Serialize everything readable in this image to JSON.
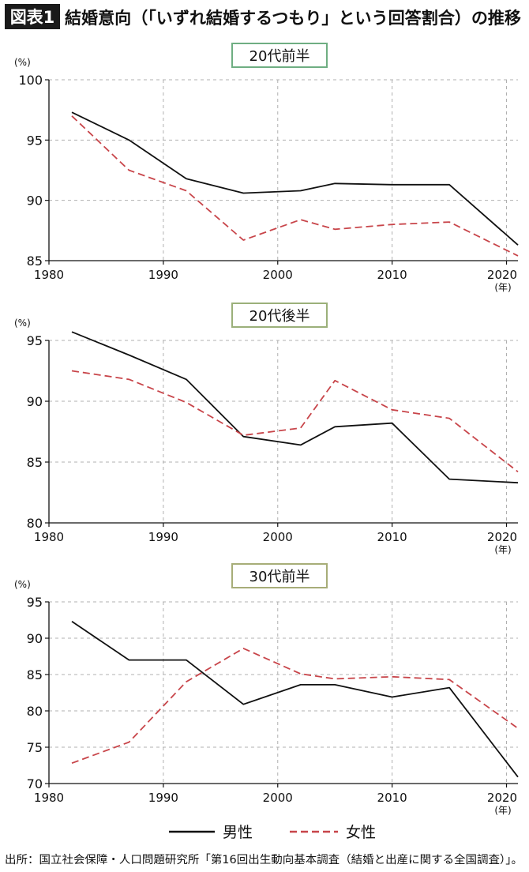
{
  "figure": {
    "label": "図表1",
    "title": "結婚意向（「いずれ結婚するつもり」という回答割合）の推移"
  },
  "colors": {
    "male": "#111111",
    "female": "#c8454a",
    "label_bg": "#1a1a1a",
    "grid": "#b0b0b0"
  },
  "legend": {
    "male": "男性",
    "female": "女性"
  },
  "source": "出所：国立社会保障・人口問題研究所「第16回出生動向基本調査（結婚と出産に関する全国調査）」。",
  "chart_data": [
    {
      "type": "line",
      "title": "20代前半",
      "ylabel": "(%)",
      "xlabel": "(年)",
      "ylim": [
        85,
        100
      ],
      "yticks": [
        85,
        90,
        95,
        100
      ],
      "xlim": [
        1980,
        2021
      ],
      "xticks": [
        1980,
        1990,
        2000,
        2010,
        2020
      ],
      "grid": true,
      "series": [
        {
          "name": "男性",
          "x": [
            1982,
            1987,
            1992,
            1997,
            2002,
            2005,
            2010,
            2015,
            2021
          ],
          "values": [
            97.3,
            95.0,
            91.8,
            90.6,
            90.8,
            91.4,
            91.3,
            91.3,
            86.3
          ]
        },
        {
          "name": "女性",
          "x": [
            1982,
            1987,
            1992,
            1997,
            2002,
            2005,
            2010,
            2015,
            2021
          ],
          "values": [
            97.0,
            92.5,
            90.8,
            86.7,
            88.4,
            87.6,
            88.0,
            88.2,
            85.4
          ]
        }
      ]
    },
    {
      "type": "line",
      "title": "20代後半",
      "ylabel": "(%)",
      "xlabel": "(年)",
      "ylim": [
        80,
        95
      ],
      "yticks": [
        80,
        85,
        90,
        95
      ],
      "xlim": [
        1980,
        2021
      ],
      "xticks": [
        1980,
        1990,
        2000,
        2010,
        2020
      ],
      "grid": true,
      "series": [
        {
          "name": "男性",
          "x": [
            1982,
            1987,
            1992,
            1997,
            2002,
            2005,
            2010,
            2015,
            2021
          ],
          "values": [
            95.7,
            93.8,
            91.8,
            87.1,
            86.4,
            87.9,
            88.2,
            83.6,
            83.3
          ]
        },
        {
          "name": "女性",
          "x": [
            1982,
            1987,
            1992,
            1997,
            2002,
            2005,
            2010,
            2015,
            2021
          ],
          "values": [
            92.5,
            91.8,
            89.9,
            87.2,
            87.8,
            91.7,
            89.3,
            88.6,
            84.2
          ]
        }
      ]
    },
    {
      "type": "line",
      "title": "30代前半",
      "ylabel": "(%)",
      "xlabel": "(年)",
      "ylim": [
        70,
        95
      ],
      "yticks": [
        70,
        75,
        80,
        85,
        90,
        95
      ],
      "xlim": [
        1980,
        2021
      ],
      "xticks": [
        1980,
        1990,
        2000,
        2010,
        2020
      ],
      "grid": true,
      "series": [
        {
          "name": "男性",
          "x": [
            1982,
            1987,
            1992,
            1997,
            2002,
            2005,
            2010,
            2015,
            2021
          ],
          "values": [
            92.3,
            87.0,
            87.0,
            80.9,
            83.6,
            83.6,
            81.9,
            83.2,
            70.9
          ]
        },
        {
          "name": "女性",
          "x": [
            1982,
            1987,
            1992,
            1997,
            2002,
            2005,
            2010,
            2015,
            2021
          ],
          "values": [
            72.8,
            75.7,
            84.0,
            88.6,
            85.1,
            84.4,
            84.7,
            84.3,
            77.6
          ]
        }
      ]
    }
  ]
}
